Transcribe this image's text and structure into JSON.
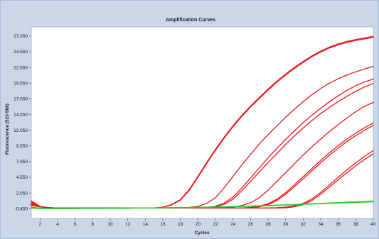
{
  "chart_data": {
    "type": "line",
    "title": "Amplification Curves",
    "xlabel": "Cycles",
    "ylabel": "Fluorescence (523-568)",
    "xlim": [
      1,
      40
    ],
    "ylim": [
      -2000,
      28500
    ],
    "grid": false,
    "legend": "none",
    "x_ticks": [
      "2",
      "4",
      "6",
      "8",
      "10",
      "12",
      "14",
      "16",
      "18",
      "20",
      "22",
      "24",
      "26",
      "28",
      "30",
      "32",
      "34",
      "36",
      "38",
      "40"
    ],
    "y_ticks": [
      "-0.450",
      "2.050",
      "4.550",
      "7.050",
      "9.550",
      "12.050",
      "14.550",
      "17.050",
      "19.550",
      "22.050",
      "24.550",
      "27.050"
    ],
    "colors": {
      "positive": "#e8161b",
      "negative": "#1fcf24",
      "axis": "#444444",
      "frame": "#c9d7e9",
      "plot_bg": "#ffffff"
    },
    "x": [
      1,
      2,
      3,
      4,
      5,
      6,
      7,
      8,
      9,
      10,
      11,
      12,
      13,
      14,
      15,
      16,
      17,
      18,
      19,
      20,
      21,
      22,
      23,
      24,
      25,
      26,
      27,
      28,
      29,
      30,
      31,
      32,
      33,
      34,
      35,
      36,
      37,
      38,
      39,
      40
    ],
    "series": [
      {
        "values": [
          800,
          -100,
          -300,
          -350,
          -350,
          -350,
          -350,
          -350,
          -350,
          -350,
          -350,
          -350,
          -350,
          -350,
          -330,
          -200,
          200,
          1000,
          2600,
          4700,
          6900,
          9000,
          10950,
          12750,
          14400,
          15900,
          17250,
          18600,
          19850,
          21000,
          22050,
          23000,
          23900,
          24650,
          25300,
          25800,
          26200,
          26500,
          26750,
          27000
        ],
        "color": "positive"
      },
      {
        "values": [
          600,
          -100,
          -300,
          -350,
          -350,
          -350,
          -350,
          -350,
          -350,
          -350,
          -350,
          -350,
          -350,
          -350,
          -330,
          -220,
          150,
          900,
          2450,
          4550,
          6750,
          8850,
          10800,
          12600,
          14250,
          15750,
          17100,
          18450,
          19700,
          20850,
          21900,
          22850,
          23750,
          24500,
          25150,
          25650,
          26050,
          26350,
          26600,
          26850
        ],
        "color": "positive"
      },
      {
        "values": [
          400,
          -150,
          -300,
          -350,
          -350,
          -350,
          -350,
          -350,
          -350,
          -350,
          -350,
          -350,
          -350,
          -350,
          -350,
          -350,
          -350,
          -330,
          -250,
          -80,
          400,
          1300,
          2900,
          4700,
          6500,
          8200,
          9850,
          11350,
          12750,
          14100,
          15400,
          16600,
          17700,
          18700,
          19550,
          20250,
          20850,
          21350,
          21800,
          22200
        ],
        "color": "positive"
      },
      {
        "values": [
          300,
          -150,
          -300,
          -350,
          -350,
          -350,
          -350,
          -350,
          -350,
          -350,
          -350,
          -350,
          -350,
          -350,
          -350,
          -350,
          -350,
          -350,
          -350,
          -330,
          -250,
          -50,
          450,
          1400,
          2850,
          4450,
          6050,
          7650,
          9150,
          10600,
          11950,
          13250,
          14450,
          15550,
          16600,
          17550,
          18400,
          19150,
          19750,
          20200
        ],
        "color": "positive"
      },
      {
        "values": [
          200,
          -150,
          -300,
          -350,
          -350,
          -350,
          -350,
          -350,
          -350,
          -350,
          -350,
          -350,
          -350,
          -350,
          -350,
          -350,
          -350,
          -350,
          -350,
          -340,
          -300,
          -150,
          250,
          1050,
          2400,
          3900,
          5400,
          6900,
          8350,
          9800,
          11150,
          12400,
          13600,
          14700,
          15700,
          16600,
          17450,
          18250,
          18950,
          19500
        ],
        "color": "positive"
      },
      {
        "values": [
          200,
          -150,
          -300,
          -350,
          -350,
          -350,
          -350,
          -350,
          -350,
          -350,
          -350,
          -350,
          -350,
          -350,
          -350,
          -350,
          -350,
          -350,
          -350,
          -350,
          -350,
          -340,
          -300,
          -200,
          50,
          500,
          1300,
          2500,
          3900,
          5300,
          6700,
          8100,
          9400,
          10650,
          11850,
          12950,
          14000,
          15000,
          15850,
          16500
        ],
        "color": "positive"
      },
      {
        "values": [
          100,
          -150,
          -300,
          -350,
          -350,
          -350,
          -350,
          -350,
          -350,
          -350,
          -350,
          -350,
          -350,
          -350,
          -350,
          -350,
          -350,
          -350,
          -350,
          -350,
          -350,
          -350,
          -350,
          -350,
          -330,
          -250,
          -50,
          350,
          1050,
          2100,
          3350,
          4650,
          5950,
          7250,
          8450,
          9600,
          10650,
          11600,
          12450,
          13200
        ],
        "color": "positive"
      },
      {
        "values": [
          100,
          -150,
          -300,
          -350,
          -350,
          -350,
          -350,
          -350,
          -350,
          -350,
          -350,
          -350,
          -350,
          -350,
          -350,
          -350,
          -350,
          -350,
          -350,
          -350,
          -350,
          -350,
          -350,
          -350,
          -340,
          -300,
          -150,
          200,
          850,
          1850,
          3050,
          4300,
          5600,
          6850,
          8050,
          9200,
          10250,
          11200,
          12050,
          12800
        ],
        "color": "positive"
      },
      {
        "values": [
          100,
          -150,
          -300,
          -350,
          -350,
          -350,
          -350,
          -350,
          -350,
          -350,
          -350,
          -350,
          -350,
          -350,
          -350,
          -350,
          -350,
          -350,
          -350,
          -350,
          -350,
          -350,
          -350,
          -350,
          -350,
          -350,
          -350,
          -340,
          -300,
          -200,
          0,
          400,
          1100,
          2150,
          3350,
          4550,
          5750,
          6850,
          7900,
          8800
        ],
        "color": "positive"
      },
      {
        "values": [
          100,
          -150,
          -300,
          -350,
          -350,
          -350,
          -350,
          -350,
          -350,
          -350,
          -350,
          -350,
          -350,
          -350,
          -350,
          -350,
          -350,
          -350,
          -350,
          -350,
          -350,
          -350,
          -350,
          -350,
          -350,
          -350,
          -350,
          -350,
          -340,
          -300,
          -150,
          200,
          850,
          1850,
          3000,
          4150,
          5300,
          6400,
          7400,
          8300
        ],
        "color": "positive"
      },
      {
        "values": [
          -200,
          -350,
          -400,
          -400,
          -400,
          -400,
          -380,
          -380,
          -370,
          -370,
          -360,
          -360,
          -350,
          -340,
          -330,
          -320,
          -300,
          -290,
          -270,
          -250,
          -230,
          -200,
          -170,
          -140,
          -100,
          -60,
          -20,
          20,
          70,
          120,
          170,
          230,
          290,
          350,
          420,
          490,
          560,
          630,
          700,
          760
        ],
        "color": "negative"
      },
      {
        "values": [
          -300,
          -400,
          -420,
          -420,
          -420,
          -410,
          -400,
          -390,
          -390,
          -380,
          -370,
          -360,
          -350,
          -340,
          -330,
          -310,
          -300,
          -280,
          -260,
          -240,
          -210,
          -180,
          -150,
          -110,
          -70,
          -30,
          10,
          60,
          110,
          160,
          220,
          280,
          340,
          400,
          460,
          520,
          580,
          640,
          700,
          750
        ],
        "color": "negative"
      },
      {
        "values": [
          -350,
          -430,
          -450,
          -450,
          -440,
          -430,
          -420,
          -410,
          -400,
          -390,
          -380,
          -370,
          -350,
          -340,
          -320,
          -300,
          -290,
          -270,
          -250,
          -230,
          -200,
          -170,
          -140,
          -100,
          -60,
          -20,
          20,
          60,
          100,
          150,
          200,
          250,
          300,
          350,
          400,
          450,
          500,
          550,
          600,
          640
        ],
        "color": "negative"
      }
    ]
  }
}
